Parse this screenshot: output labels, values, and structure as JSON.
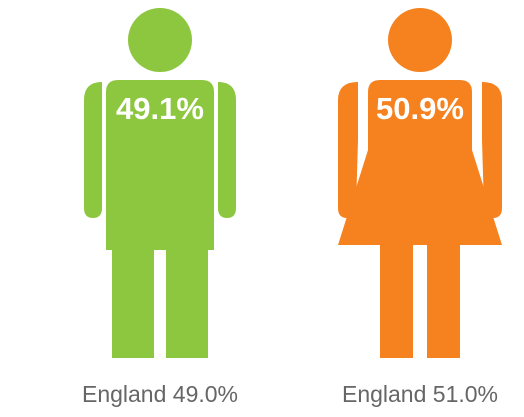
{
  "figures": [
    {
      "label": "49.1%",
      "caption": "England 49.0%"
    },
    {
      "label": "50.9%",
      "caption": "England 51.0%"
    }
  ]
}
